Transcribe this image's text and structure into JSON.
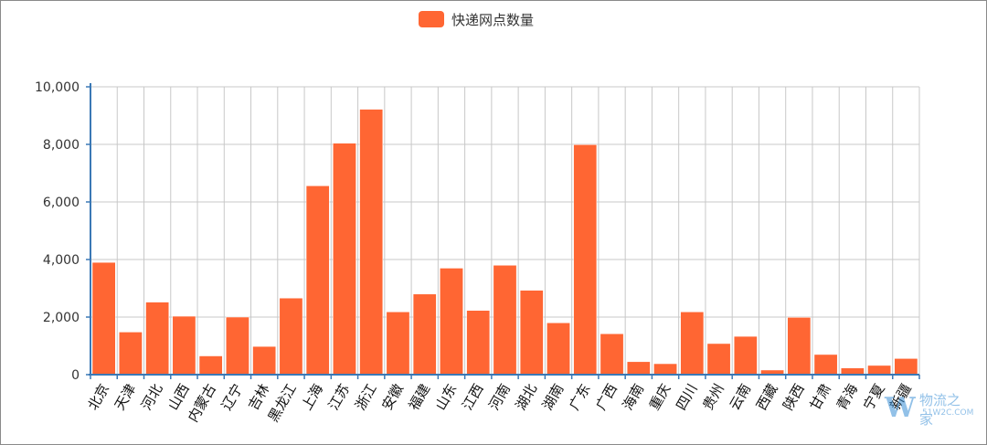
{
  "chart_data": {
    "type": "bar",
    "legend": {
      "name": "快递网点数量",
      "position": "top-center"
    },
    "categories": [
      "北京",
      "天津",
      "河北",
      "山西",
      "内蒙古",
      "辽宁",
      "吉林",
      "黑龙江",
      "上海",
      "江苏",
      "浙江",
      "安徽",
      "福建",
      "山东",
      "江西",
      "河南",
      "湖北",
      "湖南",
      "广东",
      "广西",
      "海南",
      "重庆",
      "四川",
      "贵州",
      "云南",
      "西藏",
      "陕西",
      "甘肃",
      "青海",
      "宁夏",
      "新疆"
    ],
    "series": [
      {
        "name": "快递网点数量",
        "color": "#ff6633",
        "values": [
          3900,
          1480,
          2520,
          2030,
          650,
          2000,
          980,
          2660,
          6560,
          8040,
          9220,
          2180,
          2800,
          3700,
          2230,
          3800,
          2930,
          1800,
          7990,
          1420,
          450,
          380,
          2180,
          1080,
          1330,
          160,
          1990,
          700,
          230,
          320,
          560
        ]
      }
    ],
    "yticks": [
      "0",
      "2,000",
      "4,000",
      "6,000",
      "8,000",
      "10,000"
    ],
    "ylim": [
      0,
      10000
    ],
    "grid": true,
    "bar_color": "#ff6633",
    "axis_color": "#3a78b5"
  },
  "watermark": {
    "text": "物流之家",
    "sub": "51W2C.COM"
  }
}
